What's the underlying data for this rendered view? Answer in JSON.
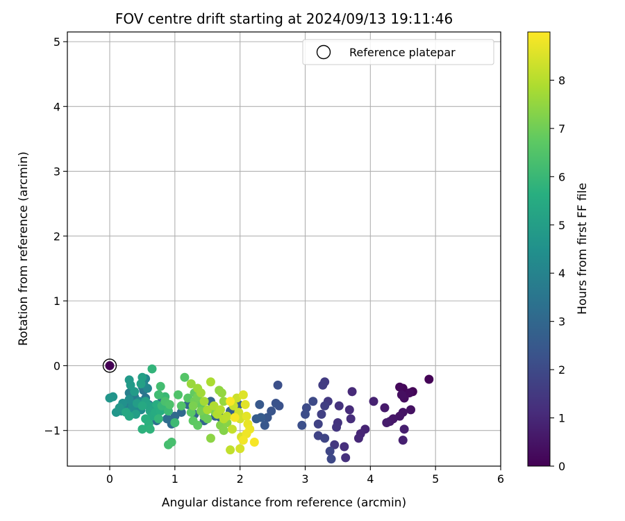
{
  "chart_data": {
    "type": "scatter",
    "title": "FOV centre drift starting at 2024/09/13 19:11:46",
    "xlabel": "Angular distance from reference (arcmin)",
    "ylabel": "Rotation from reference (arcmin)",
    "xlim": [
      -0.65,
      6.0
    ],
    "ylim": [
      -1.55,
      5.15
    ],
    "xticks": [
      0,
      1,
      2,
      3,
      4,
      5,
      6
    ],
    "yticks": [
      -1,
      0,
      1,
      2,
      3,
      4,
      5
    ],
    "xtick_labels": [
      "0",
      "1",
      "2",
      "3",
      "4",
      "5",
      "6"
    ],
    "ytick_labels": [
      "−1",
      "0",
      "1",
      "2",
      "3",
      "4",
      "5"
    ],
    "grid": true,
    "legend": {
      "placement": "top-right",
      "entries": [
        {
          "label": "Reference platepar",
          "marker": "open-circle",
          "color": "#000000"
        }
      ]
    },
    "reference_point": {
      "x": 0.0,
      "y": 0.0
    },
    "colorbar": {
      "label": "Hours from first FF file",
      "colormap": "viridis",
      "range": [
        0,
        9.0
      ],
      "ticks": [
        0,
        1,
        2,
        3,
        4,
        5,
        6,
        7,
        8
      ],
      "tick_labels": [
        "0",
        "1",
        "2",
        "3",
        "4",
        "5",
        "6",
        "7",
        "8"
      ]
    },
    "series": [
      {
        "points": [
          [
            4.9,
            -0.21,
            0.05
          ],
          [
            4.65,
            -0.4,
            0.1
          ],
          [
            4.5,
            -0.35,
            0.15
          ],
          [
            4.45,
            -0.33,
            0.2
          ],
          [
            4.6,
            -0.42,
            0.25
          ],
          [
            4.52,
            -0.5,
            0.3
          ],
          [
            4.48,
            -0.45,
            0.35
          ],
          [
            4.62,
            -0.68,
            0.4
          ],
          [
            4.5,
            -0.72,
            0.45
          ],
          [
            4.45,
            -0.78,
            0.5
          ],
          [
            4.35,
            -0.82,
            0.55
          ],
          [
            4.3,
            -0.86,
            0.6
          ],
          [
            4.22,
            -0.65,
            0.65
          ],
          [
            4.25,
            -0.88,
            0.7
          ],
          [
            4.52,
            -0.98,
            0.75
          ],
          [
            4.5,
            -1.15,
            0.8
          ],
          [
            4.05,
            -0.55,
            0.85
          ],
          [
            3.92,
            -0.98,
            0.9
          ],
          [
            3.85,
            -1.05,
            0.95
          ],
          [
            3.82,
            -1.12,
            1.0
          ],
          [
            3.72,
            -0.4,
            1.05
          ],
          [
            3.68,
            -0.68,
            1.1
          ],
          [
            3.7,
            -0.82,
            1.15
          ],
          [
            3.6,
            -1.25,
            1.2
          ],
          [
            3.62,
            -1.42,
            1.25
          ],
          [
            3.52,
            -0.62,
            1.3
          ],
          [
            3.5,
            -0.88,
            1.35
          ],
          [
            3.48,
            -0.95,
            1.4
          ],
          [
            3.45,
            -1.22,
            1.45
          ],
          [
            3.35,
            -0.55,
            1.5
          ],
          [
            3.3,
            -0.25,
            1.55
          ],
          [
            3.27,
            -0.3,
            1.6
          ],
          [
            3.3,
            -0.62,
            1.65
          ],
          [
            3.25,
            -0.75,
            1.7
          ],
          [
            3.2,
            -0.9,
            1.75
          ],
          [
            3.2,
            -1.08,
            1.8
          ],
          [
            3.3,
            -1.12,
            1.85
          ],
          [
            3.38,
            -1.32,
            1.9
          ],
          [
            3.4,
            -1.44,
            1.95
          ],
          [
            3.12,
            -0.55,
            2.0
          ],
          [
            3.02,
            -0.65,
            2.05
          ],
          [
            3.0,
            -0.75,
            2.1
          ],
          [
            2.95,
            -0.92,
            2.15
          ],
          [
            2.58,
            -0.3,
            2.2
          ],
          [
            2.6,
            -0.62,
            2.25
          ],
          [
            2.55,
            -0.58,
            2.3
          ],
          [
            2.48,
            -0.7,
            2.35
          ],
          [
            2.42,
            -0.8,
            2.4
          ],
          [
            2.38,
            -0.92,
            2.45
          ],
          [
            2.3,
            -0.6,
            2.5
          ],
          [
            2.32,
            -0.8,
            2.55
          ],
          [
            2.25,
            -0.82,
            2.6
          ],
          [
            1.98,
            -0.6,
            2.65
          ],
          [
            1.85,
            -0.7,
            2.7
          ],
          [
            1.7,
            -0.8,
            2.75
          ],
          [
            1.62,
            -0.78,
            2.8
          ],
          [
            1.55,
            -0.55,
            2.85
          ],
          [
            1.45,
            -0.85,
            2.9
          ],
          [
            1.3,
            -0.75,
            2.95
          ],
          [
            1.2,
            -0.6,
            3.0
          ],
          [
            1.1,
            -0.72,
            3.05
          ],
          [
            1.0,
            -0.78,
            3.1
          ],
          [
            0.95,
            -0.9,
            3.15
          ],
          [
            0.88,
            -0.82,
            3.2
          ],
          [
            0.8,
            -0.55,
            3.25
          ],
          [
            0.72,
            -0.85,
            3.3
          ],
          [
            0.65,
            -0.7,
            3.35
          ],
          [
            0.6,
            -0.6,
            3.4
          ],
          [
            0.55,
            -0.5,
            3.45
          ],
          [
            0.52,
            -0.38,
            3.5
          ],
          [
            0.5,
            -0.32,
            3.55
          ],
          [
            0.45,
            -0.62,
            3.6
          ],
          [
            0.42,
            -0.55,
            3.65
          ],
          [
            0.38,
            -0.48,
            3.7
          ],
          [
            0.35,
            -0.7,
            3.75
          ],
          [
            0.32,
            -0.6,
            3.8
          ],
          [
            0.3,
            -0.42,
            3.85
          ],
          [
            0.25,
            -0.58,
            3.9
          ],
          [
            0.22,
            -0.7,
            3.95
          ],
          [
            0.2,
            -0.65,
            4.0
          ],
          [
            0.55,
            -0.2,
            4.05
          ],
          [
            0.52,
            -0.28,
            4.1
          ],
          [
            0.58,
            -0.35,
            4.15
          ],
          [
            0.45,
            -0.55,
            4.2
          ],
          [
            0.48,
            -0.68,
            4.25
          ],
          [
            0.4,
            -0.72,
            4.3
          ],
          [
            0.35,
            -0.62,
            4.35
          ],
          [
            0.3,
            -0.52,
            4.4
          ],
          [
            0.28,
            -0.72,
            4.45
          ],
          [
            0.2,
            -0.58,
            4.5
          ],
          [
            0.18,
            -0.7,
            4.55
          ],
          [
            0.05,
            -0.48,
            4.6
          ],
          [
            0.0,
            -0.5,
            4.65
          ],
          [
            0.1,
            -0.72,
            4.7
          ],
          [
            0.15,
            -0.65,
            4.75
          ],
          [
            0.3,
            -0.22,
            4.8
          ],
          [
            0.32,
            -0.3,
            4.85
          ],
          [
            0.38,
            -0.4,
            4.9
          ],
          [
            0.42,
            -0.58,
            4.95
          ],
          [
            0.4,
            -0.75,
            5.0
          ],
          [
            0.5,
            -0.18,
            5.05
          ],
          [
            0.48,
            -0.28,
            5.1
          ],
          [
            0.55,
            -0.55,
            5.15
          ],
          [
            0.6,
            -0.62,
            5.2
          ],
          [
            0.62,
            -0.7,
            5.25
          ],
          [
            0.3,
            -0.78,
            5.3
          ],
          [
            0.25,
            -0.72,
            5.35
          ],
          [
            0.5,
            -0.62,
            5.4
          ],
          [
            0.65,
            -0.78,
            5.45
          ],
          [
            0.7,
            -0.72,
            5.5
          ],
          [
            0.72,
            -0.6,
            5.55
          ],
          [
            0.78,
            -0.7,
            5.6
          ],
          [
            0.55,
            -0.82,
            5.65
          ],
          [
            0.6,
            -0.9,
            5.7
          ],
          [
            0.5,
            -0.98,
            5.75
          ],
          [
            0.62,
            -0.98,
            5.8
          ],
          [
            0.65,
            -0.05,
            5.85
          ],
          [
            0.75,
            -0.82,
            5.9
          ],
          [
            0.8,
            -0.62,
            5.95
          ],
          [
            0.85,
            -0.48,
            6.0
          ],
          [
            0.9,
            -0.7,
            6.05
          ],
          [
            1.0,
            -0.88,
            6.1
          ],
          [
            0.75,
            -0.45,
            6.15
          ],
          [
            0.78,
            -0.32,
            6.2
          ],
          [
            0.9,
            -1.22,
            6.25
          ],
          [
            0.95,
            -1.18,
            6.3
          ],
          [
            0.85,
            -0.55,
            6.35
          ],
          [
            0.92,
            -0.6,
            6.4
          ],
          [
            1.05,
            -0.45,
            6.45
          ],
          [
            1.1,
            -0.62,
            6.5
          ],
          [
            1.15,
            -0.18,
            6.55
          ],
          [
            1.2,
            -0.5,
            6.6
          ],
          [
            1.25,
            -0.72,
            6.65
          ],
          [
            1.28,
            -0.85,
            6.7
          ],
          [
            1.35,
            -0.92,
            6.75
          ],
          [
            1.3,
            -0.42,
            6.8
          ],
          [
            1.4,
            -0.6,
            6.85
          ],
          [
            1.45,
            -0.78,
            6.9
          ],
          [
            1.5,
            -0.82,
            6.95
          ],
          [
            1.3,
            -0.55,
            7.0
          ],
          [
            1.35,
            -0.48,
            7.05
          ],
          [
            1.4,
            -0.7,
            7.1
          ],
          [
            1.28,
            -0.62,
            7.15
          ],
          [
            1.62,
            -0.72,
            7.2
          ],
          [
            1.7,
            -0.92,
            7.25
          ],
          [
            1.75,
            -1.0,
            7.3
          ],
          [
            1.8,
            -0.88,
            7.35
          ],
          [
            1.55,
            -1.12,
            7.4
          ],
          [
            1.68,
            -0.38,
            7.45
          ],
          [
            1.72,
            -0.42,
            7.5
          ],
          [
            1.75,
            -0.55,
            7.55
          ],
          [
            1.25,
            -0.28,
            7.6
          ],
          [
            1.35,
            -0.35,
            7.65
          ],
          [
            1.4,
            -0.42,
            7.7
          ],
          [
            1.45,
            -0.55,
            7.75
          ],
          [
            1.5,
            -0.68,
            7.8
          ],
          [
            1.55,
            -0.25,
            7.85
          ],
          [
            1.6,
            -0.62,
            7.9
          ],
          [
            1.65,
            -0.75,
            7.95
          ],
          [
            1.7,
            -0.68,
            8.0
          ],
          [
            1.75,
            -0.82,
            8.05
          ],
          [
            1.8,
            -0.78,
            8.1
          ],
          [
            1.85,
            -1.3,
            8.15
          ],
          [
            1.88,
            -0.98,
            8.2
          ],
          [
            1.9,
            -0.62,
            8.25
          ],
          [
            1.95,
            -0.5,
            8.3
          ],
          [
            1.98,
            -0.72,
            8.35
          ],
          [
            2.0,
            -0.82,
            8.4
          ],
          [
            2.0,
            -1.28,
            8.45
          ],
          [
            2.02,
            -1.1,
            8.5
          ],
          [
            2.05,
            -0.45,
            8.55
          ],
          [
            2.08,
            -0.6,
            8.6
          ],
          [
            2.1,
            -0.78,
            8.65
          ],
          [
            2.12,
            -0.9,
            8.7
          ],
          [
            2.15,
            -0.98,
            8.75
          ],
          [
            2.1,
            -1.05,
            8.8
          ],
          [
            2.05,
            -1.15,
            8.85
          ],
          [
            2.22,
            -1.18,
            8.9
          ],
          [
            1.92,
            -0.8,
            8.92
          ],
          [
            1.85,
            -0.55,
            8.95
          ]
        ]
      }
    ]
  }
}
